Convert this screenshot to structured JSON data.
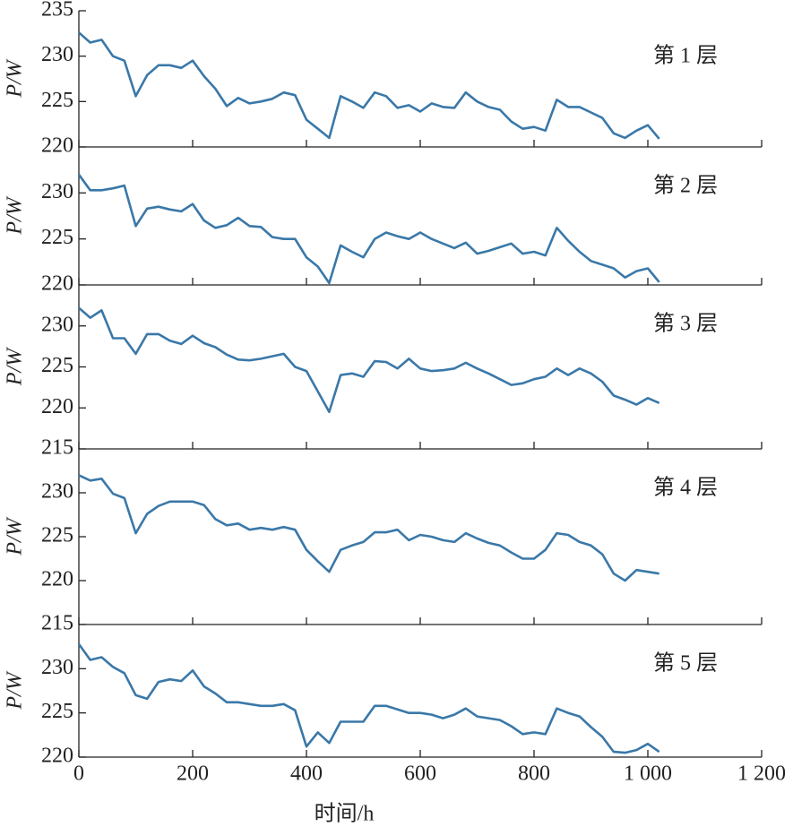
{
  "chart_data": [
    {
      "type": "line",
      "annotation": "第 1 层",
      "y_label": "P/W",
      "color": "#3a78a8",
      "xlim": [
        0,
        1200
      ],
      "ylim": [
        220,
        235
      ],
      "yticks": [
        220,
        225,
        230,
        235
      ],
      "x": [
        0,
        20,
        40,
        60,
        80,
        100,
        120,
        140,
        160,
        180,
        200,
        220,
        240,
        260,
        280,
        300,
        320,
        340,
        360,
        380,
        400,
        420,
        440,
        460,
        480,
        500,
        520,
        540,
        560,
        580,
        600,
        620,
        640,
        660,
        680,
        700,
        720,
        740,
        760,
        780,
        800,
        820,
        840,
        860,
        880,
        900,
        920,
        940,
        960,
        980,
        1000,
        1020
      ],
      "values": [
        232.6,
        231.5,
        231.8,
        230.0,
        229.5,
        225.6,
        227.9,
        229.0,
        229.0,
        228.7,
        229.5,
        227.8,
        226.4,
        224.5,
        225.4,
        224.8,
        225.0,
        225.3,
        226.0,
        225.7,
        223.0,
        222.0,
        221.0,
        225.6,
        225.0,
        224.3,
        226.0,
        225.6,
        224.3,
        224.6,
        223.9,
        224.8,
        224.4,
        224.3,
        226.0,
        225.0,
        224.4,
        224.1,
        222.8,
        222.0,
        222.2,
        221.8,
        225.2,
        224.4,
        224.4,
        223.8,
        223.2,
        221.5,
        221.0,
        221.8,
        222.4,
        220.9
      ]
    },
    {
      "type": "line",
      "annotation": "第 2 层",
      "y_label": "P/W",
      "color": "#3a78a8",
      "xlim": [
        0,
        1200
      ],
      "ylim": [
        220,
        235
      ],
      "yticks": [
        220,
        225,
        230
      ],
      "x": [
        0,
        20,
        40,
        60,
        80,
        100,
        120,
        140,
        160,
        180,
        200,
        220,
        240,
        260,
        280,
        300,
        320,
        340,
        360,
        380,
        400,
        420,
        440,
        460,
        480,
        500,
        520,
        540,
        560,
        580,
        600,
        620,
        640,
        660,
        680,
        700,
        720,
        740,
        760,
        780,
        800,
        820,
        840,
        860,
        880,
        900,
        920,
        940,
        960,
        980,
        1000,
        1020
      ],
      "values": [
        232.0,
        230.3,
        230.3,
        230.5,
        230.8,
        226.4,
        228.3,
        228.5,
        228.2,
        228.0,
        228.8,
        227.0,
        226.2,
        226.5,
        227.3,
        226.4,
        226.3,
        225.2,
        225.0,
        225.0,
        223.0,
        222.0,
        220.2,
        224.3,
        223.6,
        223.0,
        225.0,
        225.7,
        225.3,
        225.0,
        225.7,
        225.0,
        224.5,
        224.0,
        224.6,
        223.4,
        223.7,
        224.1,
        224.5,
        223.4,
        223.6,
        223.2,
        226.2,
        224.8,
        223.6,
        222.6,
        222.2,
        221.8,
        220.8,
        221.5,
        221.8,
        220.3
      ]
    },
    {
      "type": "line",
      "annotation": "第 3 层",
      "y_label": "P/W",
      "color": "#3a78a8",
      "xlim": [
        0,
        1200
      ],
      "ylim": [
        215,
        235
      ],
      "yticks": [
        215,
        220,
        225,
        230
      ],
      "x": [
        0,
        20,
        40,
        60,
        80,
        100,
        120,
        140,
        160,
        180,
        200,
        220,
        240,
        260,
        280,
        300,
        320,
        340,
        360,
        380,
        400,
        420,
        440,
        460,
        480,
        500,
        520,
        540,
        560,
        580,
        600,
        620,
        640,
        660,
        680,
        700,
        720,
        740,
        760,
        780,
        800,
        820,
        840,
        860,
        880,
        900,
        920,
        940,
        960,
        980,
        1000,
        1020
      ],
      "values": [
        232.2,
        231.0,
        231.9,
        228.5,
        228.5,
        226.6,
        229.0,
        229.0,
        228.2,
        227.8,
        228.8,
        227.9,
        227.4,
        226.5,
        225.9,
        225.8,
        226.0,
        226.3,
        226.6,
        225.0,
        224.5,
        222.0,
        219.5,
        224.0,
        224.2,
        223.8,
        225.7,
        225.6,
        224.8,
        226.0,
        224.8,
        224.5,
        224.6,
        224.8,
        225.5,
        224.8,
        224.2,
        223.5,
        222.8,
        223.0,
        223.5,
        223.8,
        224.8,
        224.0,
        224.8,
        224.2,
        223.2,
        221.5,
        221.0,
        220.4,
        221.2,
        220.6
      ]
    },
    {
      "type": "line",
      "annotation": "第 4 层",
      "y_label": "P/W",
      "color": "#3a78a8",
      "xlim": [
        0,
        1200
      ],
      "ylim": [
        215,
        235
      ],
      "yticks": [
        215,
        220,
        225,
        230
      ],
      "x": [
        0,
        20,
        40,
        60,
        80,
        100,
        120,
        140,
        160,
        180,
        200,
        220,
        240,
        260,
        280,
        300,
        320,
        340,
        360,
        380,
        400,
        420,
        440,
        460,
        480,
        500,
        520,
        540,
        560,
        580,
        600,
        620,
        640,
        660,
        680,
        700,
        720,
        740,
        760,
        780,
        800,
        820,
        840,
        860,
        880,
        900,
        920,
        940,
        960,
        980,
        1000,
        1020
      ],
      "values": [
        232.0,
        231.4,
        231.6,
        229.9,
        229.4,
        225.4,
        227.6,
        228.5,
        229.0,
        229.0,
        229.0,
        228.6,
        227.0,
        226.3,
        226.5,
        225.8,
        226.0,
        225.8,
        226.1,
        225.8,
        223.5,
        222.2,
        221.0,
        223.5,
        224.0,
        224.4,
        225.5,
        225.5,
        225.8,
        224.6,
        225.2,
        225.0,
        224.6,
        224.4,
        225.4,
        224.8,
        224.3,
        224.0,
        223.2,
        222.5,
        222.5,
        223.5,
        225.4,
        225.2,
        224.4,
        224.0,
        223.0,
        220.8,
        220.0,
        221.2,
        221.0,
        220.8
      ]
    },
    {
      "type": "line",
      "annotation": "第 5 层",
      "y_label": "P/W",
      "x_label": "时间/h",
      "color": "#3a78a8",
      "xlim": [
        0,
        1200
      ],
      "xticks": [
        0,
        200,
        400,
        600,
        800,
        {
          "value": 1000,
          "label": "1 000"
        },
        {
          "value": 1200,
          "label": "1 200"
        }
      ],
      "ylim": [
        220,
        235
      ],
      "yticks": [
        220,
        225,
        230
      ],
      "x": [
        0,
        20,
        40,
        60,
        80,
        100,
        120,
        140,
        160,
        180,
        200,
        220,
        240,
        260,
        280,
        300,
        320,
        340,
        360,
        380,
        400,
        420,
        440,
        460,
        480,
        500,
        520,
        540,
        560,
        580,
        600,
        620,
        640,
        660,
        680,
        700,
        720,
        740,
        760,
        780,
        800,
        820,
        840,
        860,
        880,
        900,
        920,
        940,
        960,
        980,
        1000,
        1020
      ],
      "values": [
        232.8,
        231.0,
        231.3,
        230.2,
        229.5,
        227.0,
        226.6,
        228.5,
        228.8,
        228.6,
        229.8,
        228.0,
        227.2,
        226.2,
        226.2,
        226.0,
        225.8,
        225.8,
        226.0,
        225.3,
        221.2,
        222.8,
        221.6,
        224.0,
        224.0,
        224.0,
        225.8,
        225.8,
        225.4,
        225.0,
        225.0,
        224.8,
        224.4,
        224.8,
        225.5,
        224.6,
        224.4,
        224.2,
        223.5,
        222.6,
        222.8,
        222.6,
        225.5,
        225.0,
        224.6,
        223.4,
        222.3,
        220.6,
        220.5,
        220.8,
        221.5,
        220.6
      ]
    }
  ]
}
